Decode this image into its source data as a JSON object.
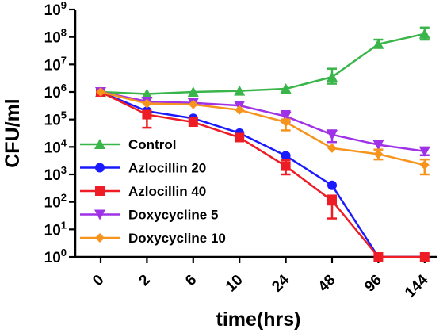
{
  "chart_data": {
    "type": "line",
    "xlabel": "time(hrs)",
    "ylabel": "CFU/ml",
    "categories": [
      "0",
      "2",
      "6",
      "10",
      "24",
      "48",
      "96",
      "144"
    ],
    "y_scale": "log10",
    "ylim": [
      1,
      1000000000
    ],
    "y_ticks": [
      {
        "base": "10",
        "exp": "0"
      },
      {
        "base": "10",
        "exp": "1"
      },
      {
        "base": "10",
        "exp": "2"
      },
      {
        "base": "10",
        "exp": "3"
      },
      {
        "base": "10",
        "exp": "4"
      },
      {
        "base": "10",
        "exp": "5"
      },
      {
        "base": "10",
        "exp": "6"
      },
      {
        "base": "10",
        "exp": "7"
      },
      {
        "base": "10",
        "exp": "8"
      },
      {
        "base": "10",
        "exp": "9"
      }
    ],
    "grid": false,
    "legend_position": "bottom-left",
    "series": [
      {
        "name": "Control",
        "color": "#39b54a",
        "marker": "triangle-up",
        "values": [
          1000000,
          850000,
          1000000,
          1100000,
          1300000,
          3500000,
          55000000,
          130000000
        ],
        "err_high": [
          1000000,
          850000,
          1000000,
          1100000,
          1300000,
          7000000,
          80000000,
          220000000
        ],
        "err_low": [
          1000000,
          850000,
          1000000,
          1100000,
          1300000,
          2000000,
          40000000,
          80000000
        ]
      },
      {
        "name": "Azlocillin 20",
        "color": "#1a1aff",
        "marker": "circle",
        "values": [
          1000000,
          200000,
          110000,
          32000,
          4800,
          400,
          1,
          1
        ],
        "err_high": [
          1000000,
          200000,
          110000,
          32000,
          4800,
          400,
          1,
          1
        ],
        "err_low": [
          1000000,
          200000,
          110000,
          32000,
          4800,
          400,
          1,
          1
        ]
      },
      {
        "name": "Azlocillin 40",
        "color": "#ee1c24",
        "marker": "square",
        "values": [
          1000000,
          150000,
          80000,
          22000,
          2000,
          110,
          1,
          1
        ],
        "err_high": [
          1000000,
          200000,
          80000,
          22000,
          3300,
          170,
          1,
          1
        ],
        "err_low": [
          1000000,
          50000,
          80000,
          22000,
          1000,
          25,
          1,
          1
        ]
      },
      {
        "name": "Doxycycline 5",
        "color": "#9f32e6",
        "marker": "triangle-down",
        "values": [
          1000000,
          450000,
          400000,
          320000,
          130000,
          28000,
          12000,
          7000
        ],
        "err_high": [
          1000000,
          450000,
          400000,
          320000,
          200000,
          40000,
          12000,
          9500
        ],
        "err_low": [
          1000000,
          450000,
          400000,
          320000,
          80000,
          15000,
          12000,
          5000
        ]
      },
      {
        "name": "Doxycycline 10",
        "color": "#f7941d",
        "marker": "diamond",
        "values": [
          1000000,
          380000,
          350000,
          220000,
          80000,
          9000,
          5500,
          2200
        ],
        "err_high": [
          1000000,
          380000,
          350000,
          220000,
          100000,
          9000,
          8000,
          3500
        ],
        "err_low": [
          1000000,
          380000,
          350000,
          220000,
          40000,
          9000,
          3500,
          1000
        ]
      }
    ]
  }
}
